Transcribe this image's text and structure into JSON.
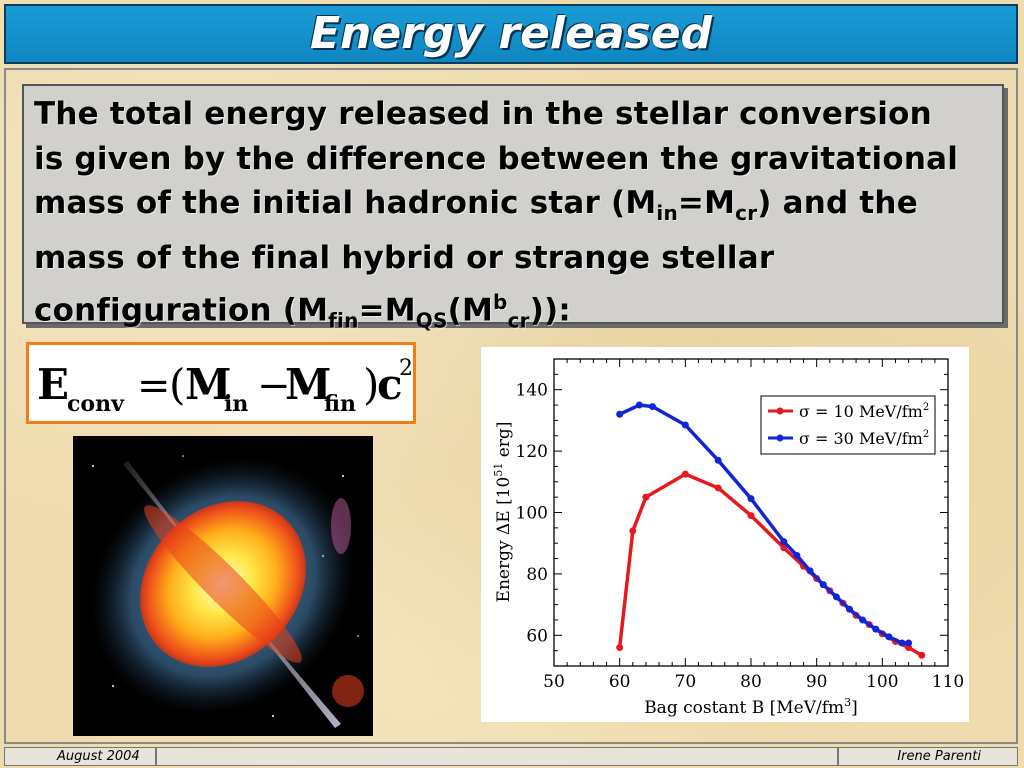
{
  "slide": {
    "title": "Energy released",
    "body": {
      "line1": "The total energy released in the stellar conversion",
      "line2": "is given by the difference between the gravitational",
      "line3_a": "mass of the initial hadronic star (M",
      "line3_sub1": "in",
      "line3_b": "=M",
      "line3_sub2": "cr",
      "line3_c": ") and the",
      "line4": "mass of the final hybrid or strange stellar",
      "line5_a": "configuration (M",
      "line5_sub1": "fin",
      "line5_b": "=M",
      "line5_sub2": "QS",
      "line5_c": "(M",
      "line5_sup": "b",
      "line5_sub3": "cr",
      "line5_d": ")):"
    },
    "formula": {
      "E": "E",
      "E_sub": "conv",
      "eq": "=",
      "lparen": "(",
      "M1": "M",
      "M1_sub": "in",
      "minus": "−",
      "M2": "M",
      "M2_sub": "fin",
      "rparen": ")",
      "c": "c",
      "c_sup": "2"
    },
    "footer": {
      "date": "August 2004",
      "author": "Irene Parenti"
    }
  },
  "chart_data": {
    "type": "line",
    "xlabel_main": "Bag costant  B   [MeV/fm",
    "xlabel_sup": "3",
    "xlabel_end": "]",
    "ylabel_main": "Energy ΔE   [10",
    "ylabel_sup": "51",
    "ylabel_end": " erg]",
    "xlim": [
      50,
      110
    ],
    "ylim": [
      50,
      150
    ],
    "xticks": [
      50,
      60,
      70,
      80,
      90,
      100,
      110
    ],
    "yticks": [
      60,
      80,
      100,
      120,
      140
    ],
    "legend_position": "top-right",
    "series": [
      {
        "name": "σ = 10 MeV/fm",
        "name_sup": "2",
        "color": "#e8191c",
        "x": [
          60,
          62,
          64,
          70,
          75,
          80,
          85,
          88,
          90,
          92,
          94,
          96,
          98,
          100,
          102,
          104,
          106
        ],
        "y": [
          56,
          94,
          105,
          112.5,
          108,
          99,
          88.5,
          82.5,
          78.5,
          74.5,
          70.5,
          66.5,
          63.5,
          60.5,
          58,
          56,
          53.5
        ]
      },
      {
        "name": "σ = 30 MeV/fm",
        "name_sup": "2",
        "color": "#1124d6",
        "x": [
          60,
          63,
          65,
          70,
          75,
          80,
          85,
          87,
          89,
          91,
          93,
          95,
          97,
          99,
          101,
          103,
          104
        ],
        "y": [
          132,
          135,
          134.5,
          128.5,
          117,
          104.5,
          90.5,
          86,
          81,
          76.5,
          72.5,
          68.5,
          65,
          62,
          59.5,
          57.5,
          57.5
        ]
      }
    ]
  }
}
